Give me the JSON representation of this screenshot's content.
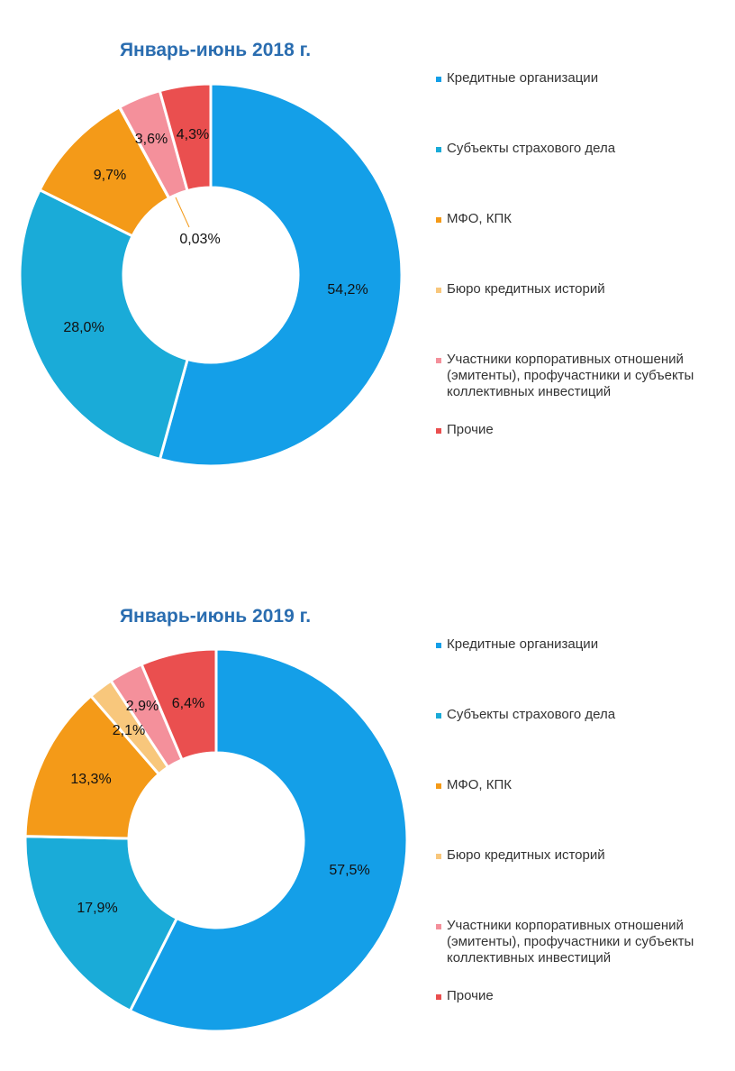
{
  "colors": {
    "title": "#2a6db0",
    "credit_orgs": "#149fe8",
    "insurance": "#1aabd8",
    "mfo_kpk": "#f49a18",
    "bureau": "#f8c77c",
    "corporate": "#f4909b",
    "other": "#ea4f4f"
  },
  "chart_data": [
    {
      "type": "donut",
      "title": "Январь-июнь 2018 г.",
      "legend_position": "right",
      "categories": [
        "Кредитные организации",
        "Субъекты страхового дела",
        "МФО, КПК",
        "Бюро кредитных историй",
        "Участники корпоративных отношений (эмитенты), профучастники и субъекты коллективных инвестиций",
        "Прочие"
      ],
      "values": [
        54.2,
        28.0,
        9.7,
        0.03,
        3.6,
        4.3
      ],
      "labels": [
        "54,2%",
        "28,0%",
        "9,7%",
        "0,03%",
        "3,6%",
        "4,3%"
      ]
    },
    {
      "type": "donut",
      "title": "Январь-июнь 2019 г.",
      "legend_position": "right",
      "categories": [
        "Кредитные организации",
        "Субъекты страхового дела",
        "МФО, КПК",
        "Бюро кредитных историй",
        "Участники корпоративных отношений (эмитенты), профучастники и субъекты коллективных инвестиций",
        "Прочие"
      ],
      "values": [
        57.5,
        17.9,
        13.3,
        2.1,
        2.9,
        6.4
      ],
      "labels": [
        "57,5%",
        "17,9%",
        "13,3%",
        "2,1%",
        "2,9%",
        "6,4%"
      ]
    }
  ],
  "legend": {
    "items": [
      {
        "label": "Кредитные организации",
        "color": "#149fe8"
      },
      {
        "label": "Субъекты страхового дела",
        "color": "#1aabd8"
      },
      {
        "label": "МФО, КПК",
        "color": "#f49a18"
      },
      {
        "label": "Бюро кредитных историй",
        "color": "#f8c77c"
      },
      {
        "label_lines": [
          "Участники корпоративных отношений",
          "(эмитенты), профучастники и субъекты",
          "коллективных инвестиций"
        ],
        "color": "#f4909b"
      },
      {
        "label": "Прочие",
        "color": "#ea4f4f"
      }
    ]
  }
}
